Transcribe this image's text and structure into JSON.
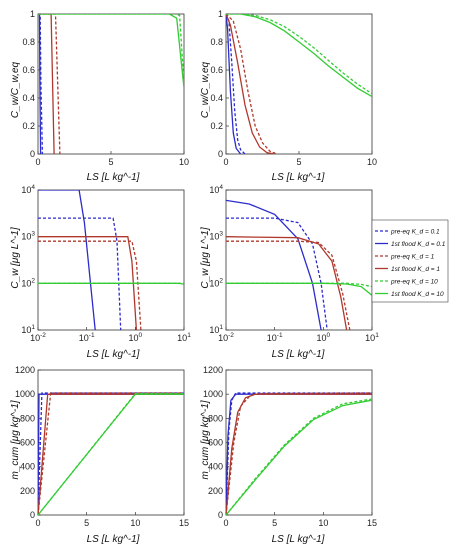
{
  "colors": {
    "blue": "#2c2ccc",
    "red": "#b0382c",
    "green": "#33cc33"
  },
  "legend": {
    "entries": [
      {
        "label": "pre-eq K_d = 0.1",
        "color": "#2c2ccc",
        "dashed": true
      },
      {
        "label": "1st flood K_d = 0.1",
        "color": "#2c2ccc",
        "dashed": false
      },
      {
        "label": "pre-eq K_d = 1",
        "color": "#b0382c",
        "dashed": true
      },
      {
        "label": "1st flood K_d = 1",
        "color": "#b0382c",
        "dashed": false
      },
      {
        "label": "pre-eq K_d = 10",
        "color": "#33cc33",
        "dashed": true
      },
      {
        "label": "1st flood K_d = 10",
        "color": "#33cc33",
        "dashed": false
      }
    ]
  },
  "axis_labels": {
    "row1_y": "C_w/C_w,eq",
    "row2_y": "C_w [μg L^-1]",
    "row3_y": "m_cum [μg kg^-1]",
    "x": "LS [L kg^-1]"
  },
  "chart_data": [
    {
      "type": "line",
      "xlim": [
        0,
        10
      ],
      "ylim": [
        0,
        1
      ],
      "xscale": "linear",
      "yscale": "linear",
      "xticks": [
        "0",
        "5",
        "10"
      ],
      "yticks": [
        "0",
        "0.2",
        "0.4",
        "0.6",
        "0.8",
        "1"
      ],
      "series": [
        {
          "color": "blue",
          "dash": true,
          "x": [
            0,
            0.15,
            0.2,
            0.3
          ],
          "y": [
            1,
            1,
            0.5,
            0
          ]
        },
        {
          "color": "blue",
          "dash": false,
          "x": [
            0,
            0.1,
            0.13,
            0.18
          ],
          "y": [
            1,
            1,
            0.5,
            0
          ]
        },
        {
          "color": "red",
          "dash": true,
          "x": [
            0,
            1.2,
            1.35,
            1.5
          ],
          "y": [
            1,
            1,
            0.5,
            0
          ]
        },
        {
          "color": "red",
          "dash": false,
          "x": [
            0,
            0.9,
            1.0,
            1.1
          ],
          "y": [
            1,
            1,
            0.5,
            0
          ]
        },
        {
          "color": "green",
          "dash": true,
          "x": [
            0,
            9.4,
            9.7,
            10
          ],
          "y": [
            1,
            1,
            0.99,
            0.5
          ]
        },
        {
          "color": "green",
          "dash": false,
          "x": [
            0,
            9.0,
            9.5,
            10
          ],
          "y": [
            1,
            1,
            0.97,
            0.47
          ]
        }
      ]
    },
    {
      "type": "line",
      "xlim": [
        0,
        10
      ],
      "ylim": [
        0,
        1
      ],
      "xscale": "linear",
      "yscale": "linear",
      "xticks": [
        "0",
        "5",
        "10"
      ],
      "yticks": [
        "0",
        "0.2",
        "0.4",
        "0.6",
        "0.8",
        "1"
      ],
      "series": [
        {
          "color": "blue",
          "dash": true,
          "x": [
            0,
            0.2,
            0.4,
            0.6,
            0.8,
            1.0,
            1.3
          ],
          "y": [
            1,
            0.95,
            0.65,
            0.3,
            0.1,
            0.03,
            0
          ]
        },
        {
          "color": "blue",
          "dash": false,
          "x": [
            0,
            0.1,
            0.3,
            0.5,
            0.7,
            1.0
          ],
          "y": [
            1,
            0.9,
            0.45,
            0.15,
            0.04,
            0
          ]
        },
        {
          "color": "red",
          "dash": true,
          "x": [
            0,
            0.5,
            1.0,
            1.5,
            2.0,
            2.5,
            3.0,
            3.5
          ],
          "y": [
            1,
            0.95,
            0.75,
            0.45,
            0.2,
            0.08,
            0.02,
            0
          ]
        },
        {
          "color": "red",
          "dash": false,
          "x": [
            0,
            0.3,
            0.8,
            1.3,
            1.8,
            2.3,
            2.8,
            3.3
          ],
          "y": [
            1,
            0.92,
            0.65,
            0.35,
            0.15,
            0.05,
            0.01,
            0
          ]
        },
        {
          "color": "green",
          "dash": true,
          "x": [
            0,
            1,
            2,
            3,
            4,
            5,
            6,
            7,
            8,
            9,
            10
          ],
          "y": [
            1,
            1,
            0.99,
            0.96,
            0.91,
            0.84,
            0.76,
            0.67,
            0.58,
            0.5,
            0.43
          ]
        },
        {
          "color": "green",
          "dash": false,
          "x": [
            0,
            1,
            2,
            3,
            4,
            5,
            6,
            7,
            8,
            9,
            10
          ],
          "y": [
            1,
            1,
            0.98,
            0.94,
            0.88,
            0.8,
            0.72,
            0.63,
            0.55,
            0.47,
            0.41
          ]
        }
      ]
    },
    {
      "type": "line",
      "xlim": [
        0.01,
        10
      ],
      "ylim": [
        10,
        10000
      ],
      "xscale": "log",
      "yscale": "log",
      "xticks": [
        "10^-2",
        "10^-1",
        "10^0",
        "10^1"
      ],
      "yticks": [
        "10^1",
        "10^2",
        "10^3",
        "10^4"
      ],
      "series": [
        {
          "color": "blue",
          "dash": true,
          "x": [
            0.01,
            0.35,
            0.42,
            0.5
          ],
          "y": [
            2500,
            2500,
            800,
            10
          ]
        },
        {
          "color": "blue",
          "dash": false,
          "x": [
            0.01,
            0.07,
            0.09,
            0.12,
            0.15
          ],
          "y": [
            10000,
            10000,
            2000,
            100,
            10
          ]
        },
        {
          "color": "red",
          "dash": true,
          "x": [
            0.01,
            0.85,
            1.05,
            1.3
          ],
          "y": [
            800,
            800,
            300,
            10
          ]
        },
        {
          "color": "red",
          "dash": false,
          "x": [
            0.01,
            0.7,
            0.85,
            1.05
          ],
          "y": [
            1000,
            1000,
            300,
            10
          ]
        },
        {
          "color": "green",
          "dash": true,
          "x": [
            0.01,
            7,
            8.5,
            10
          ],
          "y": [
            100,
            100,
            100,
            100
          ]
        },
        {
          "color": "green",
          "dash": false,
          "x": [
            0.01,
            7,
            8.5,
            10
          ],
          "y": [
            100,
            100,
            99,
            95
          ]
        }
      ]
    },
    {
      "type": "line",
      "xlim": [
        0.01,
        10
      ],
      "ylim": [
        10,
        10000
      ],
      "xscale": "log",
      "yscale": "log",
      "xticks": [
        "10^-2",
        "10^-1",
        "10^0",
        "10^1"
      ],
      "yticks": [
        "10^1",
        "10^2",
        "10^3",
        "10^4"
      ],
      "series": [
        {
          "color": "blue",
          "dash": true,
          "x": [
            0.01,
            0.1,
            0.3,
            0.6,
            0.9,
            1.2
          ],
          "y": [
            2500,
            2500,
            2000,
            700,
            100,
            10
          ]
        },
        {
          "color": "blue",
          "dash": false,
          "x": [
            0.01,
            0.03,
            0.1,
            0.3,
            0.6,
            0.9
          ],
          "y": [
            6000,
            5000,
            3000,
            900,
            100,
            10
          ]
        },
        {
          "color": "red",
          "dash": true,
          "x": [
            0.01,
            0.3,
            0.8,
            1.5,
            2.5,
            3.5
          ],
          "y": [
            800,
            800,
            750,
            400,
            60,
            10
          ]
        },
        {
          "color": "red",
          "dash": false,
          "x": [
            0.01,
            0.3,
            0.8,
            1.5,
            2.3,
            3.0
          ],
          "y": [
            1000,
            950,
            700,
            300,
            50,
            10
          ]
        },
        {
          "color": "green",
          "dash": true,
          "x": [
            0.01,
            1,
            3,
            6,
            10
          ],
          "y": [
            100,
            100,
            100,
            95,
            85
          ]
        },
        {
          "color": "green",
          "dash": false,
          "x": [
            0.01,
            1,
            3,
            6,
            10
          ],
          "y": [
            100,
            100,
            97,
            85,
            55
          ]
        }
      ]
    },
    {
      "type": "line",
      "xlim": [
        0,
        15
      ],
      "ylim": [
        0,
        1200
      ],
      "xscale": "linear",
      "yscale": "linear",
      "xticks": [
        "0",
        "5",
        "10",
        "15"
      ],
      "yticks": [
        "0",
        "200",
        "400",
        "600",
        "800",
        "1000",
        "1200"
      ],
      "series": [
        {
          "color": "blue",
          "dash": true,
          "x": [
            0,
            0.4,
            15
          ],
          "y": [
            0,
            1010,
            1010
          ]
        },
        {
          "color": "blue",
          "dash": false,
          "x": [
            0,
            0.1,
            15
          ],
          "y": [
            0,
            1000,
            1000
          ]
        },
        {
          "color": "red",
          "dash": true,
          "x": [
            0,
            1.3,
            15
          ],
          "y": [
            0,
            1010,
            1010
          ]
        },
        {
          "color": "red",
          "dash": false,
          "x": [
            0,
            1.0,
            15
          ],
          "y": [
            0,
            1000,
            1000
          ]
        },
        {
          "color": "green",
          "dash": true,
          "x": [
            0,
            10,
            15
          ],
          "y": [
            0,
            1005,
            1005
          ]
        },
        {
          "color": "green",
          "dash": false,
          "x": [
            0,
            10,
            15
          ],
          "y": [
            0,
            1000,
            1000
          ]
        }
      ]
    },
    {
      "type": "line",
      "xlim": [
        0,
        15
      ],
      "ylim": [
        0,
        1200
      ],
      "xscale": "linear",
      "yscale": "linear",
      "xticks": [
        "0",
        "5",
        "10",
        "15"
      ],
      "yticks": [
        "0",
        "200",
        "400",
        "600",
        "800",
        "1000",
        "1200"
      ],
      "series": [
        {
          "color": "blue",
          "dash": true,
          "x": [
            0,
            0.3,
            0.6,
            1.0,
            15
          ],
          "y": [
            0,
            700,
            950,
            1010,
            1010
          ]
        },
        {
          "color": "blue",
          "dash": false,
          "x": [
            0,
            0.2,
            0.5,
            1.0,
            15
          ],
          "y": [
            0,
            650,
            950,
            1000,
            1000
          ]
        },
        {
          "color": "red",
          "dash": true,
          "x": [
            0,
            0.8,
            1.5,
            2.5,
            3.5,
            15
          ],
          "y": [
            0,
            600,
            900,
            990,
            1005,
            1010
          ]
        },
        {
          "color": "red",
          "dash": false,
          "x": [
            0,
            0.6,
            1.2,
            2.0,
            3.0,
            15
          ],
          "y": [
            0,
            550,
            850,
            970,
            1000,
            1000
          ]
        },
        {
          "color": "green",
          "dash": true,
          "x": [
            0,
            3,
            6,
            9,
            12,
            15
          ],
          "y": [
            0,
            300,
            580,
            800,
            920,
            960
          ]
        },
        {
          "color": "green",
          "dash": false,
          "x": [
            0,
            3,
            6,
            9,
            12,
            15
          ],
          "y": [
            0,
            290,
            570,
            790,
            905,
            950
          ]
        }
      ]
    }
  ]
}
